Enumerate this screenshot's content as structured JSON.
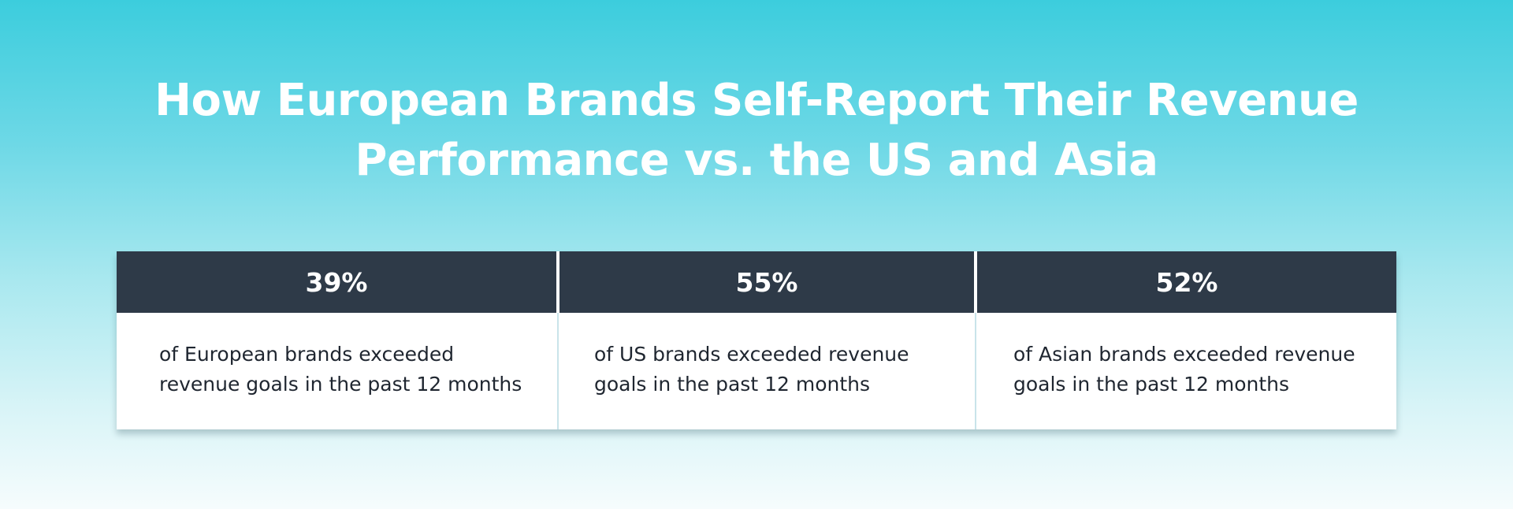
{
  "title": {
    "line1": "How European Brands Self-Report Their Revenue",
    "line2": "Performance vs. the US and Asia"
  },
  "columns": [
    {
      "percent": "39%",
      "line1": "of European brands exceeded",
      "line2": "revenue goals in the past 12 months"
    },
    {
      "percent": "55%",
      "line1": "of US brands exceeded revenue",
      "line2": "goals in the past 12 months"
    },
    {
      "percent": "52%",
      "line1": "of Asian brands exceeded revenue",
      "line2": "goals in the past 12 months"
    }
  ],
  "colors": {
    "header_bg": "#2e3a48",
    "gradient_top": "#3ccddd",
    "gradient_bottom": "#f6fcfd"
  }
}
